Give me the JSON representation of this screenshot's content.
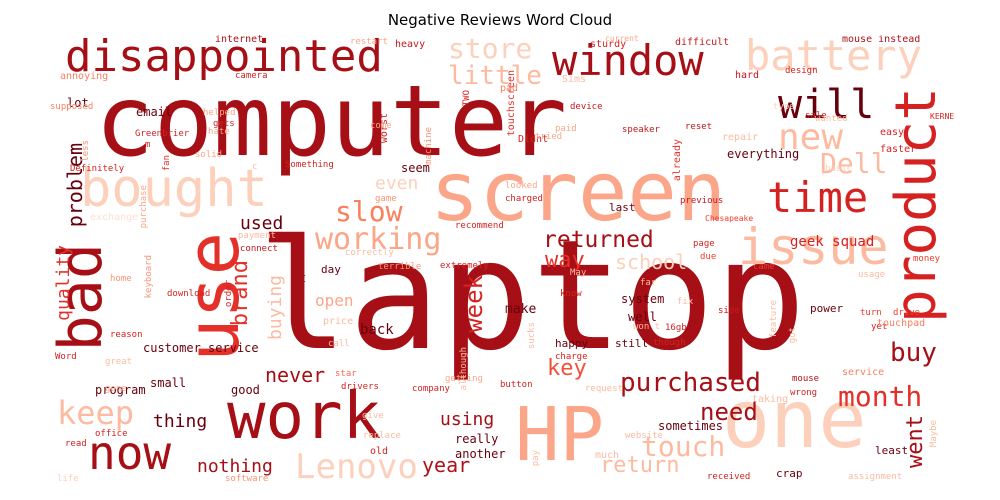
{
  "title": "Negative Reviews Word Cloud",
  "colormap": "Reds",
  "words": [
    {
      "text": "laptop",
      "weight": 1.0
    },
    {
      "text": "computer",
      "weight": 0.9
    },
    {
      "text": "screen",
      "weight": 0.74
    },
    {
      "text": "one",
      "weight": 0.72
    },
    {
      "text": "HP",
      "weight": 0.68
    },
    {
      "text": "use",
      "weight": 0.66
    },
    {
      "text": "work",
      "weight": 0.62
    },
    {
      "text": "bad",
      "weight": 0.56
    },
    {
      "text": "product",
      "weight": 0.52
    },
    {
      "text": "bought",
      "weight": 0.5
    },
    {
      "text": "issue",
      "weight": 0.5
    },
    {
      "text": "disappointed",
      "weight": 0.46
    },
    {
      "text": "now",
      "weight": 0.46
    },
    {
      "text": "window",
      "weight": 0.44
    },
    {
      "text": "battery",
      "weight": 0.44
    },
    {
      "text": "time",
      "weight": 0.42
    },
    {
      "text": "Lenovo",
      "weight": 0.38
    },
    {
      "text": "working",
      "weight": 0.38
    },
    {
      "text": "will",
      "weight": 0.36
    },
    {
      "text": "new",
      "weight": 0.34
    },
    {
      "text": "Dell",
      "weight": 0.3
    },
    {
      "text": "keep",
      "weight": 0.3
    },
    {
      "text": "slow",
      "weight": 0.28
    },
    {
      "text": "month",
      "weight": 0.28
    },
    {
      "text": "purchased",
      "weight": 0.27
    },
    {
      "text": "touch",
      "weight": 0.26
    },
    {
      "text": "returned",
      "weight": 0.26
    },
    {
      "text": "need",
      "weight": 0.25
    },
    {
      "text": "store",
      "weight": 0.25
    },
    {
      "text": "little",
      "weight": 0.25
    },
    {
      "text": "school",
      "weight": 0.24
    },
    {
      "text": "week",
      "weight": 0.24
    },
    {
      "text": "buy",
      "weight": 0.24
    },
    {
      "text": "way",
      "weight": 0.23
    },
    {
      "text": "went",
      "weight": 0.22
    },
    {
      "text": "key",
      "weight": 0.22
    },
    {
      "text": "return",
      "weight": 0.22
    },
    {
      "text": "brand",
      "weight": 0.21
    },
    {
      "text": "never",
      "weight": 0.21
    },
    {
      "text": "problem",
      "weight": 0.21
    },
    {
      "text": "quality",
      "weight": 0.2
    },
    {
      "text": "year",
      "weight": 0.2
    },
    {
      "text": "nothing",
      "weight": 0.19
    },
    {
      "text": "thing",
      "weight": 0.19
    },
    {
      "text": "using",
      "weight": 0.19
    },
    {
      "text": "buying",
      "weight": 0.18
    },
    {
      "text": "used",
      "weight": 0.18
    },
    {
      "text": "even",
      "weight": 0.18
    },
    {
      "text": "open",
      "weight": 0.17
    },
    {
      "text": "back",
      "weight": 0.15
    },
    {
      "text": "make",
      "weight": 0.14
    },
    {
      "text": "geek squad",
      "weight": 0.14
    },
    {
      "text": "customer service",
      "weight": 0.13
    },
    {
      "text": "program",
      "weight": 0.13
    },
    {
      "text": "small",
      "weight": 0.13
    },
    {
      "text": "system",
      "weight": 0.13
    },
    {
      "text": "well",
      "weight": 0.12
    },
    {
      "text": "everything",
      "weight": 0.12
    },
    {
      "text": "really",
      "weight": 0.12
    },
    {
      "text": "sometimes",
      "weight": 0.12
    },
    {
      "text": "another",
      "weight": 0.11
    },
    {
      "text": "good",
      "weight": 0.11
    },
    {
      "text": "happy",
      "weight": 0.11
    },
    {
      "text": "still",
      "weight": 0.11
    },
    {
      "text": "lot",
      "weight": 0.11
    },
    {
      "text": "email",
      "weight": 0.11
    },
    {
      "text": "seem",
      "weight": 0.11
    },
    {
      "text": "day",
      "weight": 0.1
    },
    {
      "text": "last",
      "weight": 0.1
    },
    {
      "text": "power",
      "weight": 0.1
    },
    {
      "text": "crap",
      "weight": 0.1
    },
    {
      "text": "least",
      "weight": 0.1
    },
    {
      "text": "mouse instead",
      "weight": 0.09
    },
    {
      "text": "internet",
      "weight": 0.09
    },
    {
      "text": "heavy",
      "weight": 0.09
    },
    {
      "text": "difficult",
      "weight": 0.09
    },
    {
      "text": "hard",
      "weight": 0.09
    },
    {
      "text": "design",
      "weight": 0.09
    },
    {
      "text": "sale",
      "weight": 0.09
    },
    {
      "text": "easy",
      "weight": 0.09
    },
    {
      "text": "faster",
      "weight": 0.09
    },
    {
      "text": "speaker",
      "weight": 0.09
    },
    {
      "text": "reset",
      "weight": 0.09
    },
    {
      "text": "already",
      "weight": 0.09
    },
    {
      "text": "device",
      "weight": 0.09
    },
    {
      "text": "touchscreen",
      "weight": 0.09
    },
    {
      "text": "charged",
      "weight": 0.09
    },
    {
      "text": "recommend",
      "weight": 0.09
    },
    {
      "text": "extremely",
      "weight": 0.09
    },
    {
      "text": "terrible",
      "weight": 0.09
    },
    {
      "text": "company",
      "weight": 0.09
    },
    {
      "text": "drivers",
      "weight": 0.09
    },
    {
      "text": "star",
      "weight": 0.09
    },
    {
      "text": "button",
      "weight": 0.09
    },
    {
      "text": "office",
      "weight": 0.09
    },
    {
      "text": "received",
      "weight": 0.09
    },
    {
      "text": "software",
      "weight": 0.09
    },
    {
      "text": "service",
      "weight": 0.09
    },
    {
      "text": "mouse",
      "weight": 0.08
    },
    {
      "text": "came",
      "weight": 0.08
    },
    {
      "text": "turn",
      "weight": 0.08
    },
    {
      "text": "drive",
      "weight": 0.08
    },
    {
      "text": "money",
      "weight": 0.08
    },
    {
      "text": "yet",
      "weight": 0.08
    },
    {
      "text": "touchpad",
      "weight": 0.08
    },
    {
      "text": "fan",
      "weight": 0.08
    },
    {
      "text": "solid",
      "weight": 0.08
    },
    {
      "text": "Greenbrier",
      "weight": 0.08
    },
    {
      "text": "gets",
      "weight": 0.08
    },
    {
      "text": "m",
      "weight": 0.08
    },
    {
      "text": "helped",
      "weight": 0.08
    },
    {
      "text": "hate",
      "weight": 0.08
    },
    {
      "text": "camera",
      "weight": 0.08
    },
    {
      "text": "annoying",
      "weight": 0.08
    },
    {
      "text": "supposed",
      "weight": 0.08
    },
    {
      "text": "less",
      "weight": 0.08
    },
    {
      "text": "restart",
      "weight": 0.08
    },
    {
      "text": "sturdy",
      "weight": 0.08
    },
    {
      "text": "current",
      "weight": 0.08
    },
    {
      "text": "Sims",
      "weight": 0.08
    },
    {
      "text": "TWO",
      "weight": 0.08
    },
    {
      "text": "pad",
      "weight": 0.08
    },
    {
      "text": "Didnt",
      "weight": 0.08
    },
    {
      "text": "tried",
      "weight": 0.08
    },
    {
      "text": "paid",
      "weight": 0.08
    },
    {
      "text": "worst",
      "weight": 0.08
    },
    {
      "text": "machine",
      "weight": 0.08
    },
    {
      "text": "come",
      "weight": 0.08
    },
    {
      "text": "looked",
      "weight": 0.08
    },
    {
      "text": "game",
      "weight": 0.08
    },
    {
      "text": "wanted",
      "weight": 0.08
    },
    {
      "text": "type",
      "weight": 0.08
    },
    {
      "text": "repair",
      "weight": 0.08
    },
    {
      "text": "previous",
      "weight": 0.08
    },
    {
      "text": "page",
      "weight": 0.08
    },
    {
      "text": "due",
      "weight": 0.08
    },
    {
      "text": "Chesapeake",
      "weight": 0.08
    },
    {
      "text": "payment",
      "weight": 0.08
    },
    {
      "text": "connect",
      "weight": 0.08
    },
    {
      "text": "purchase",
      "weight": 0.08
    },
    {
      "text": "download",
      "weight": 0.08
    },
    {
      "text": "keyboard",
      "weight": 0.08
    },
    {
      "text": "order",
      "weight": 0.08
    },
    {
      "text": "home",
      "weight": 0.08
    },
    {
      "text": "reason",
      "weight": 0.08
    },
    {
      "text": "price",
      "weight": 0.08
    },
    {
      "text": "call",
      "weight": 0.08
    },
    {
      "text": "Word",
      "weight": 0.08
    },
    {
      "text": "great",
      "weight": 0.08
    },
    {
      "text": "gone",
      "weight": 0.08
    },
    {
      "text": "getting",
      "weight": 0.08
    },
    {
      "text": "give",
      "weight": 0.08
    },
    {
      "text": "replace",
      "weight": 0.08
    },
    {
      "text": "read",
      "weight": 0.08
    },
    {
      "text": "life",
      "weight": 0.08
    },
    {
      "text": "old",
      "weight": 0.08
    },
    {
      "text": "pay",
      "weight": 0.08
    },
    {
      "text": "much",
      "weight": 0.08
    },
    {
      "text": "website",
      "weight": 0.08
    },
    {
      "text": "request",
      "weight": 0.08
    },
    {
      "text": "charge",
      "weight": 0.08
    },
    {
      "text": "although",
      "weight": 0.08
    },
    {
      "text": "sucks",
      "weight": 0.08
    },
    {
      "text": "far",
      "weight": 0.08
    },
    {
      "text": "May",
      "weight": 0.08
    },
    {
      "text": "won t",
      "weight": 0.08
    },
    {
      "text": "16gb",
      "weight": 0.08
    },
    {
      "text": "though",
      "weight": 0.08
    },
    {
      "text": "fix",
      "weight": 0.08
    },
    {
      "text": "side",
      "weight": 0.08
    },
    {
      "text": "feature",
      "weight": 0.08
    },
    {
      "text": "got",
      "weight": 0.08
    },
    {
      "text": "taking",
      "weight": 0.08
    },
    {
      "text": "wrong",
      "weight": 0.08
    },
    {
      "text": "Maybe",
      "weight": 0.08
    },
    {
      "text": "assignment",
      "weight": 0.08
    },
    {
      "text": "usage",
      "weight": 0.08
    },
    {
      "text": "exchange",
      "weight": 0.08
    },
    {
      "text": "Definitely",
      "weight": 0.08
    },
    {
      "text": "Something",
      "weight": 0.08
    },
    {
      "text": "correctly",
      "weight": 0.08
    },
    {
      "text": "t",
      "weight": 0.08
    },
    {
      "text": "c",
      "weight": 0.08
    },
    {
      "text": "know",
      "weight": 0.08
    },
    {
      "text": "basic",
      "weight": 0.08
    },
    {
      "text": "KERNEL",
      "weight": 0.08
    }
  ]
}
